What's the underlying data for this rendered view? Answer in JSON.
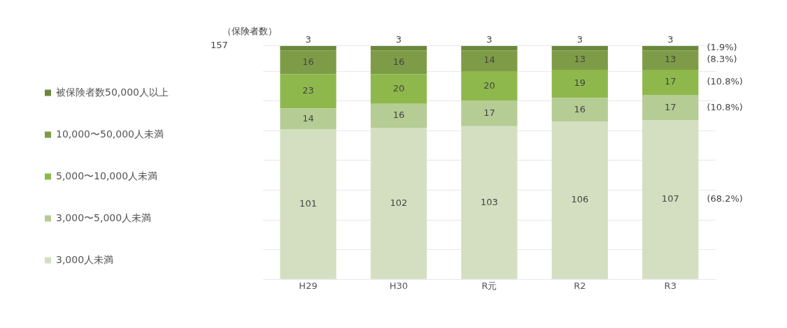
{
  "chart_data": {
    "type": "bar",
    "stacked": true,
    "ylabel": "（保険者数）",
    "categories": [
      "H29",
      "H30",
      "R元",
      "R2",
      "R3"
    ],
    "series": [
      {
        "name": "3,000人未満",
        "color": "#d3dfc0",
        "values": [
          101,
          102,
          103,
          106,
          107
        ]
      },
      {
        "name": "3,000〜5,000人未満",
        "color": "#b5cc95",
        "values": [
          14,
          16,
          17,
          16,
          17
        ]
      },
      {
        "name": "5,000〜10,000人未満",
        "color": "#8fb84c",
        "values": [
          23,
          20,
          20,
          19,
          17
        ]
      },
      {
        "name": "10,000〜50,000人未満",
        "color": "#7e9c48",
        "values": [
          16,
          16,
          14,
          13,
          13
        ]
      },
      {
        "name": "被保険者数50,000人以上",
        "color": "#6a883a",
        "values": [
          3,
          3,
          3,
          3,
          3
        ]
      }
    ],
    "ylim": [
      0,
      157
    ],
    "yticks": [
      {
        "value": 0,
        "label": null
      },
      {
        "value": 20,
        "label": null
      },
      {
        "value": 40,
        "label": null
      },
      {
        "value": 60,
        "label": null
      },
      {
        "value": 80,
        "label": null
      },
      {
        "value": 100,
        "label": null
      },
      {
        "value": 120,
        "label": null
      },
      {
        "value": 140,
        "label": null
      },
      157
    ],
    "grid": "y",
    "legend": "left",
    "data_labels": true,
    "annotations": [
      "(1.9%)",
      "(8.3%)",
      "(10.8%)",
      "(10.8%)",
      "(68.2%)"
    ]
  }
}
